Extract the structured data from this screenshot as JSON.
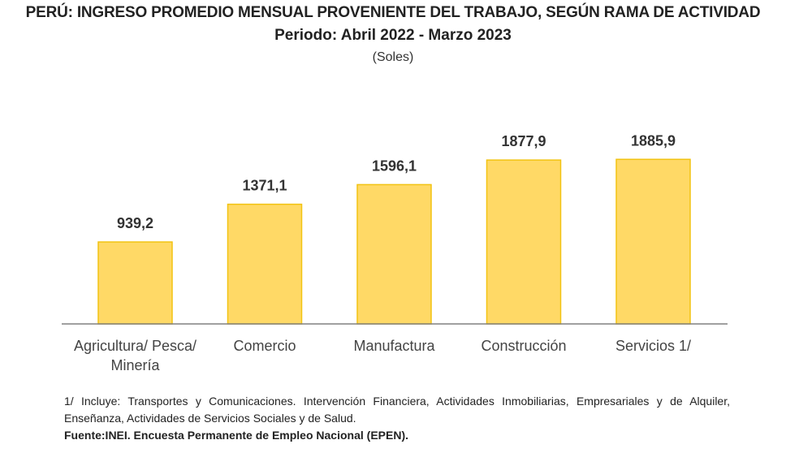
{
  "chart_data": {
    "type": "bar",
    "title": "PERÚ: INGRESO PROMEDIO MENSUAL PROVENIENTE DEL TRABAJO, SEGÚN RAMA DE ACTIVIDAD",
    "subtitle": "Periodo: Abril 2022 - Marzo 2023",
    "unit": "(Soles)",
    "categories": [
      [
        "Agricultura/ Pesca/",
        "Minería"
      ],
      [
        "Comercio"
      ],
      [
        "Manufactura"
      ],
      [
        "Construcción"
      ],
      [
        "Servicios 1/"
      ]
    ],
    "values": [
      939.2,
      1371.1,
      1596.1,
      1877.9,
      1885.9
    ],
    "data_labels": [
      "939,2",
      "1371,1",
      "1596,1",
      "1877,9",
      "1885,9"
    ],
    "ylim": [
      0,
      2000
    ],
    "grid": false,
    "colors": {
      "bar_fill": "#FFD966",
      "bar_stroke": "#F2C312",
      "axis": "#808080",
      "text": "#333333"
    }
  },
  "footnote": "1/ Incluye:  Transportes y Comunicaciones. Intervención Financiera, Actividades Inmobiliarias, Empresariales y de Alquiler, Enseñanza, Actividades de Servicios Sociales y de Salud.",
  "source": "Fuente:INEI. Encuesta Permanente de Empleo Nacional (EPEN)."
}
